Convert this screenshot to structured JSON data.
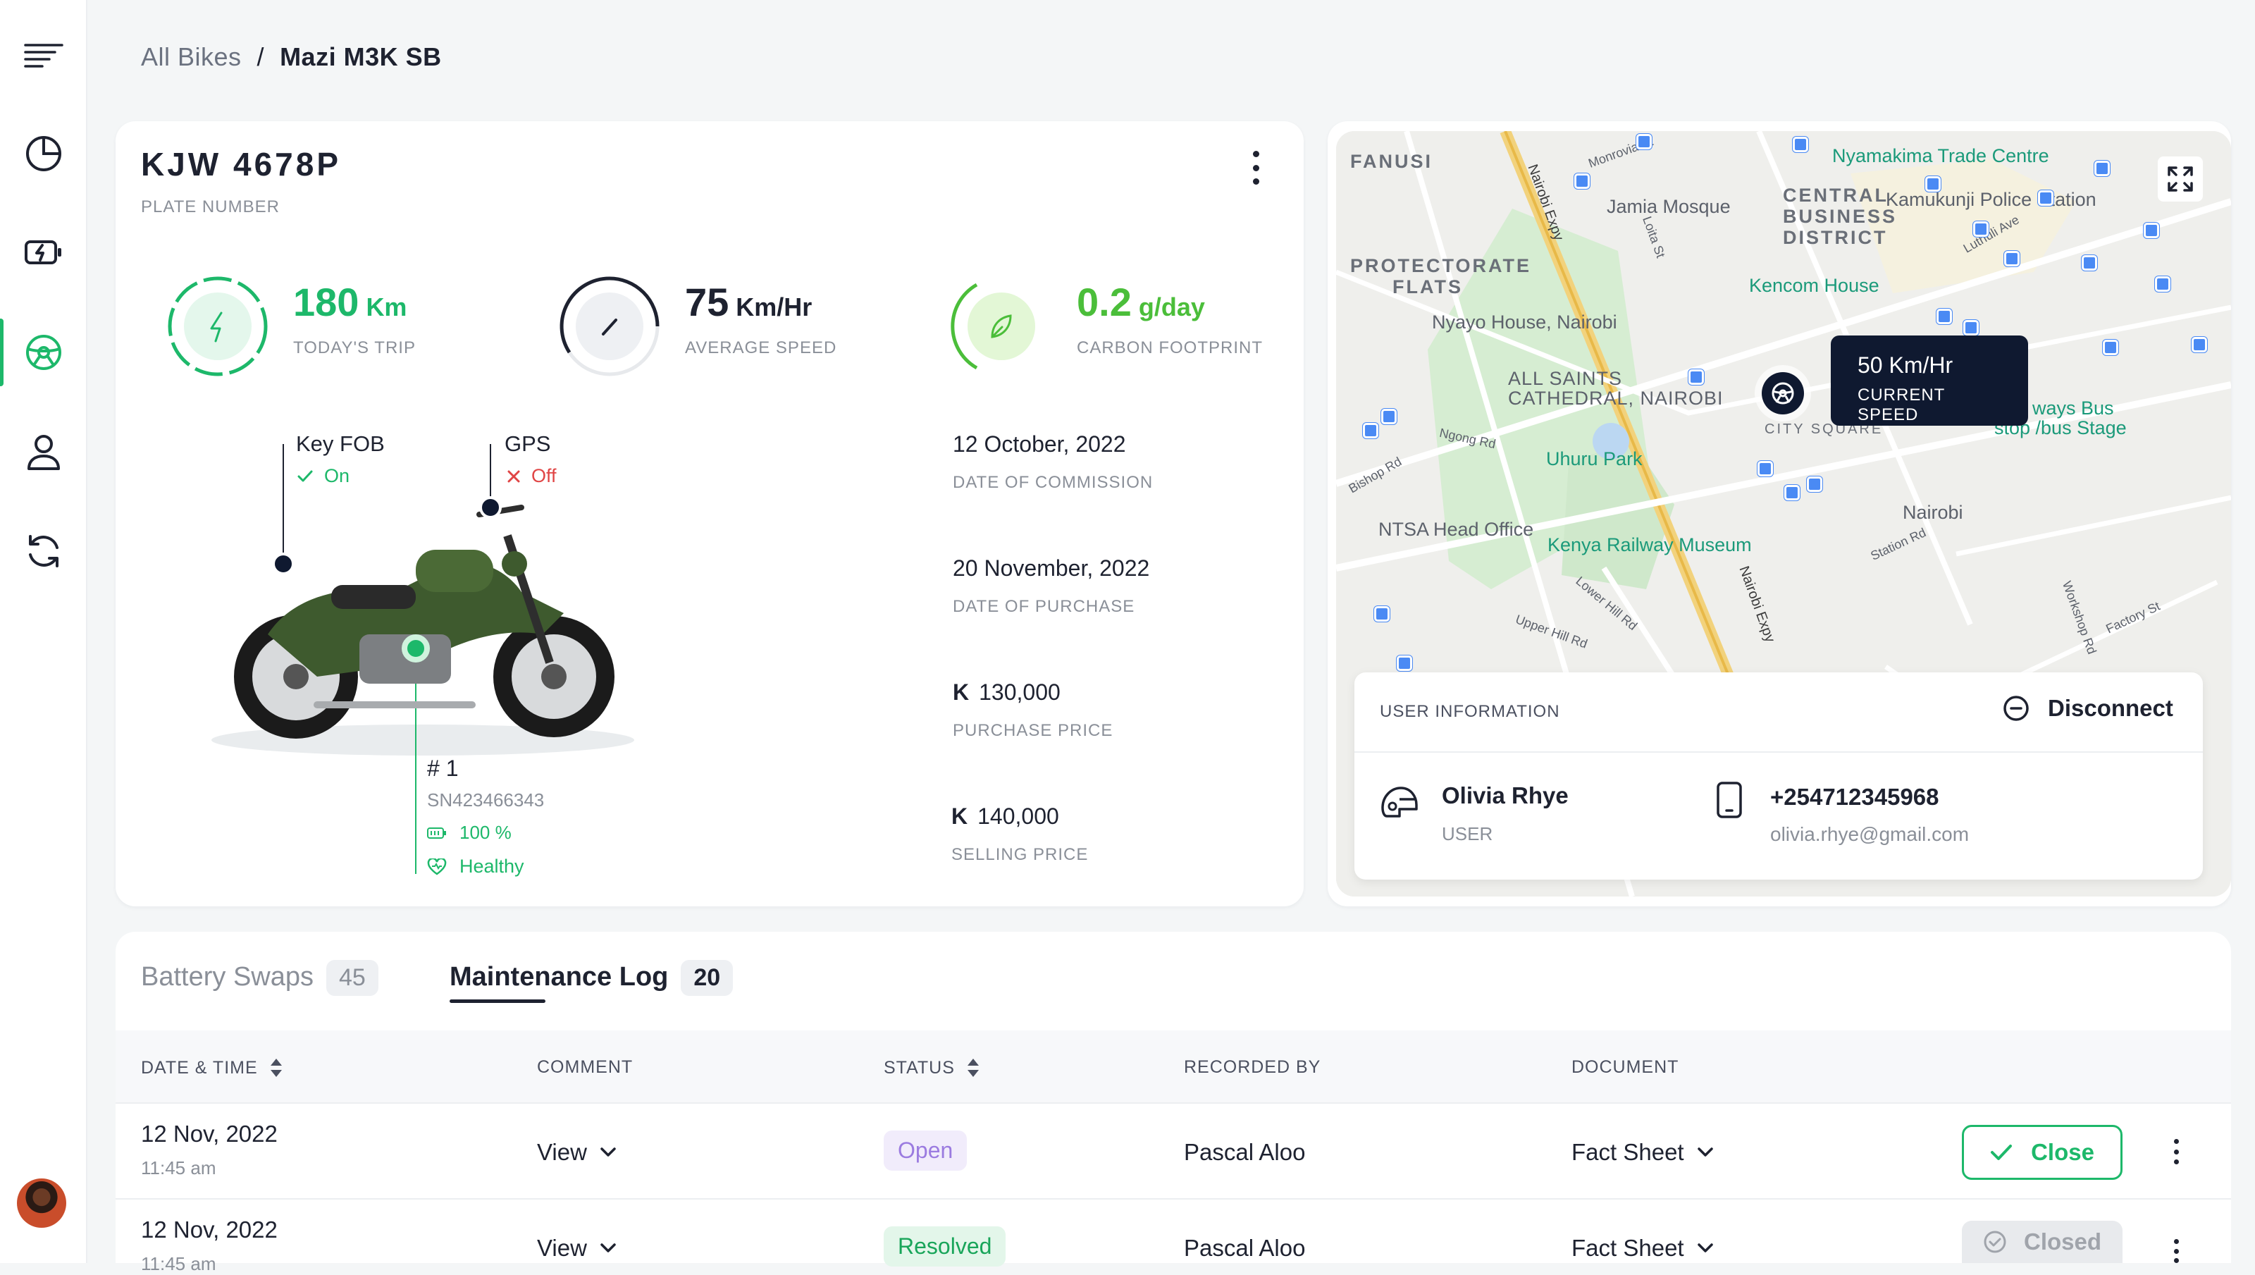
{
  "breadcrumb": {
    "parent": "All Bikes",
    "separator": "/",
    "current": "Mazi M3K SB"
  },
  "bike": {
    "plate": "KJW 4678P",
    "plate_label": "PLATE NUMBER",
    "stats": [
      {
        "value": "180",
        "unit": "Km",
        "label": "TODAY'S TRIP",
        "color": "#1DB86A"
      },
      {
        "value": "75",
        "unit": "Km/Hr",
        "label": "AVERAGE SPEED",
        "color": "#1E2230"
      },
      {
        "value": "0.2",
        "unit": "g/day",
        "label": "CARBON FOOTPRINT",
        "color": "#4BBE3A"
      }
    ],
    "key_fob": {
      "label": "Key FOB",
      "status": "On"
    },
    "gps": {
      "label": "GPS",
      "status": "Off"
    },
    "battery": {
      "number": "# 1",
      "serial": "SN423466343",
      "charge": "100 %",
      "health": "Healthy"
    },
    "details": [
      {
        "value": "12 October, 2022",
        "label": "DATE OF COMMISSION",
        "currency": ""
      },
      {
        "value": "20 November, 2022",
        "label": "DATE OF PURCHASE",
        "currency": ""
      },
      {
        "value": "130,000",
        "label": "PURCHASE PRICE",
        "currency": "K"
      },
      {
        "value": "140,000",
        "label": "SELLING PRICE",
        "currency": "K"
      }
    ]
  },
  "map": {
    "areas": [
      "FANUSI",
      "CENTRAL",
      "BUSINESS",
      "DISTRICT",
      "PROTECTORATE",
      "FLATS",
      "CITY SQUARE"
    ],
    "places": {
      "nyamakima": "Nyamakima Trade Centre",
      "kamukunji": "Kamukunji Police Station",
      "jamia": "Jamia Mosque",
      "kencom": "Kencom House",
      "nyayo": "Nyayo House, Nairobi",
      "allsaints1": "ALL SAINTS",
      "allsaints2": "CATHEDRAL, NAIROBI",
      "uhuru": "Uhuru Park",
      "ntsa": "NTSA Head Office",
      "railway": "Kenya Railway Museum",
      "nairobi": "Nairobi",
      "busstop1": "ways Bus",
      "busstop2": "stop /bus Stage",
      "ngong": "Ngong Rd",
      "expy1": "Nairobi Expy",
      "expy2": "Nairobi Expy",
      "monrovia": "Monrovia St",
      "loita": "Loita St",
      "luthuli": "Luthuli Ave",
      "bishop": "Bishop Rd",
      "station": "Station Rd",
      "upperhill": "Upper Hill Rd",
      "lowerhill": "Lower Hill Rd",
      "workshop": "Workshop Rd",
      "factory": "Factory St"
    },
    "tooltip": {
      "speed": "50 Km/Hr",
      "label": "CURRENT SPEED"
    },
    "user_info_title": "USER INFORMATION",
    "disconnect_label": "Disconnect",
    "user": {
      "name": "Olivia Rhye",
      "role": "USER",
      "phone": "+254712345968",
      "email": "olivia.rhye@gmail.com"
    }
  },
  "tabs": [
    {
      "label": "Battery Swaps",
      "count": "45",
      "active": false
    },
    {
      "label": "Maintenance Log",
      "count": "20",
      "active": true
    }
  ],
  "table": {
    "headers": [
      "DATE & TIME",
      "COMMENT",
      "STATUS",
      "RECORDED BY",
      "DOCUMENT"
    ],
    "rows": [
      {
        "date": "12 Nov, 2022",
        "time": "11:45 am",
        "comment": "View",
        "status": "Open",
        "recorded_by": "Pascal Aloo",
        "document": "Fact Sheet",
        "action": "Close"
      },
      {
        "date": "12 Nov, 2022",
        "time": "11:45 am",
        "comment": "View",
        "status": "Resolved",
        "recorded_by": "Pascal Aloo",
        "document": "Fact Sheet",
        "action": "Closed"
      }
    ]
  },
  "colors": {
    "accent": "#1DB86A",
    "open_bg": "#F1ECFB",
    "open_text": "#9B7BE0",
    "resolved_bg": "#E3F6EA",
    "resolved_text": "#19A55A",
    "danger": "#E04545",
    "navy": "#0F1930"
  },
  "icons": [
    "menu-icon",
    "pie-chart-icon",
    "battery-charging-icon",
    "steering-wheel-icon",
    "user-icon",
    "refresh-icon",
    "more-vertical-icon",
    "bolt-icon",
    "speedometer-icon",
    "leaf-icon",
    "check-icon",
    "x-icon",
    "battery-icon",
    "heart-icon",
    "expand-icon",
    "minus-circle-icon",
    "helmet-icon",
    "phone-icon",
    "sort-icon",
    "chevron-down-icon",
    "check-circle-icon"
  ]
}
